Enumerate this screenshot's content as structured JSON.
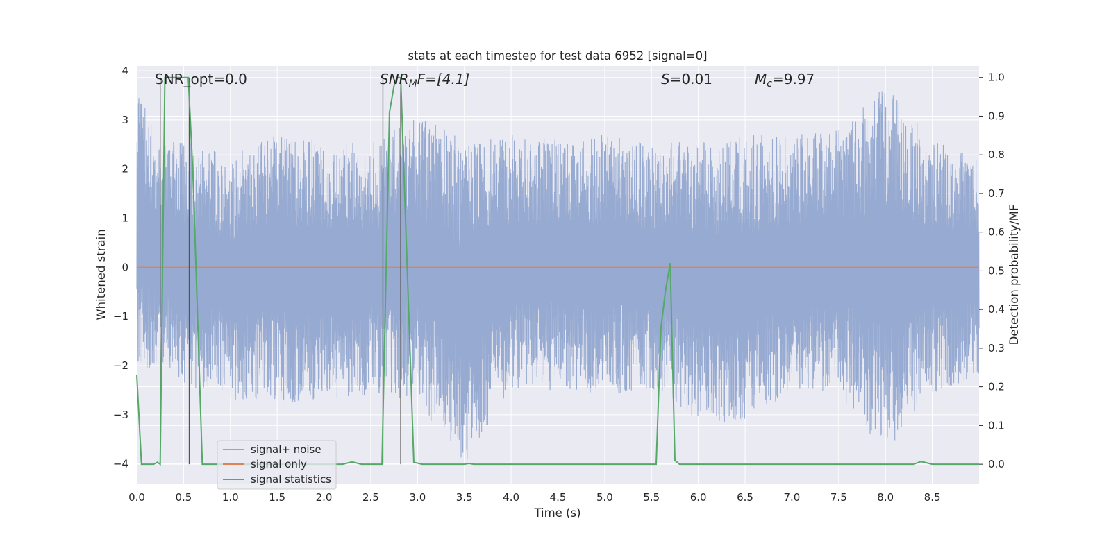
{
  "chart_data": {
    "type": "line",
    "title": "stats at each timestep for test data 6952 [signal=0]",
    "xlabel": "Time (s)",
    "ylabel": "Whitened strain",
    "ylabel_right": "Detection probability/MF",
    "xlim": [
      0.0,
      9.0
    ],
    "ylim": [
      -4.4,
      4.1
    ],
    "ylim_right": [
      -0.05,
      1.03
    ],
    "x_ticks": [
      "0.0",
      "0.5",
      "1.0",
      "1.5",
      "2.0",
      "2.5",
      "3.0",
      "3.5",
      "4.0",
      "4.5",
      "5.0",
      "5.5",
      "6.0",
      "6.5",
      "7.0",
      "7.5",
      "8.0",
      "8.5"
    ],
    "y_ticks": [
      "4",
      "3",
      "2",
      "1",
      "0",
      "−1",
      "−2",
      "−3",
      "−4"
    ],
    "y_ticks_right": [
      "1.0",
      "0.9",
      "0.8",
      "0.7",
      "0.6",
      "0.5",
      "0.4",
      "0.3",
      "0.2",
      "0.1",
      "0.0"
    ],
    "grid": true,
    "legend_position": "lower-left",
    "annotations": {
      "snr_opt": "SNR_opt=0.0",
      "snr_mf_sym": "SNR",
      "snr_mf_sub": "M",
      "snr_mf_rest": "F=[4.1]",
      "s_sym": "S",
      "s_val": "=0.01",
      "mc_sym": "M",
      "mc_sub": "c",
      "mc_val": "=9.97"
    },
    "vertical_markers": [
      0.25,
      0.56,
      2.63,
      2.82
    ],
    "series": [
      {
        "name": "signal+ noise",
        "color": "#92a6cf",
        "axis": "left",
        "envelope": {
          "x": [
            0.0,
            0.25,
            0.5,
            1.0,
            1.5,
            2.0,
            2.5,
            3.0,
            3.5,
            4.0,
            4.5,
            5.0,
            5.5,
            6.0,
            6.5,
            7.0,
            7.5,
            8.0,
            8.5,
            9.0
          ],
          "upper": [
            3.7,
            2.5,
            2.6,
            2.3,
            2.7,
            2.6,
            2.6,
            3.1,
            2.6,
            2.7,
            2.6,
            2.7,
            2.5,
            2.6,
            2.7,
            2.7,
            2.8,
            3.7,
            2.6,
            2.2
          ],
          "lower": [
            -2.0,
            -2.2,
            -2.4,
            -2.7,
            -2.8,
            -2.7,
            -2.6,
            -2.8,
            -4.0,
            -2.5,
            -2.5,
            -2.6,
            -2.5,
            -3.1,
            -3.2,
            -2.5,
            -2.6,
            -3.8,
            -2.6,
            -2.2
          ]
        }
      },
      {
        "name": "signal only",
        "color": "#dd8452",
        "axis": "left",
        "x": [
          0.0,
          9.0
        ],
        "y": [
          0.0,
          0.0
        ]
      },
      {
        "name": "signal statistics",
        "color": "#55a868",
        "axis": "right",
        "x": [
          0.0,
          0.05,
          0.18,
          0.22,
          0.25,
          0.3,
          0.55,
          0.6,
          0.7,
          2.2,
          2.3,
          2.4,
          2.62,
          2.7,
          2.75,
          2.78,
          2.82,
          2.96,
          3.05,
          3.5,
          3.55,
          3.6,
          5.55,
          5.6,
          5.65,
          5.7,
          5.75,
          5.8,
          8.3,
          8.38,
          8.5,
          9.0
        ],
        "y": [
          0.23,
          0.0,
          0.0,
          0.005,
          0.0,
          1.0,
          1.0,
          0.75,
          0.0,
          0.0,
          0.006,
          0.0,
          0.0,
          0.91,
          0.98,
          1.0,
          1.0,
          0.005,
          0.0,
          0.0,
          0.002,
          0.0,
          0.0,
          0.35,
          0.45,
          0.52,
          0.01,
          0.0,
          0.0,
          0.007,
          0.0,
          0.0
        ]
      }
    ]
  }
}
